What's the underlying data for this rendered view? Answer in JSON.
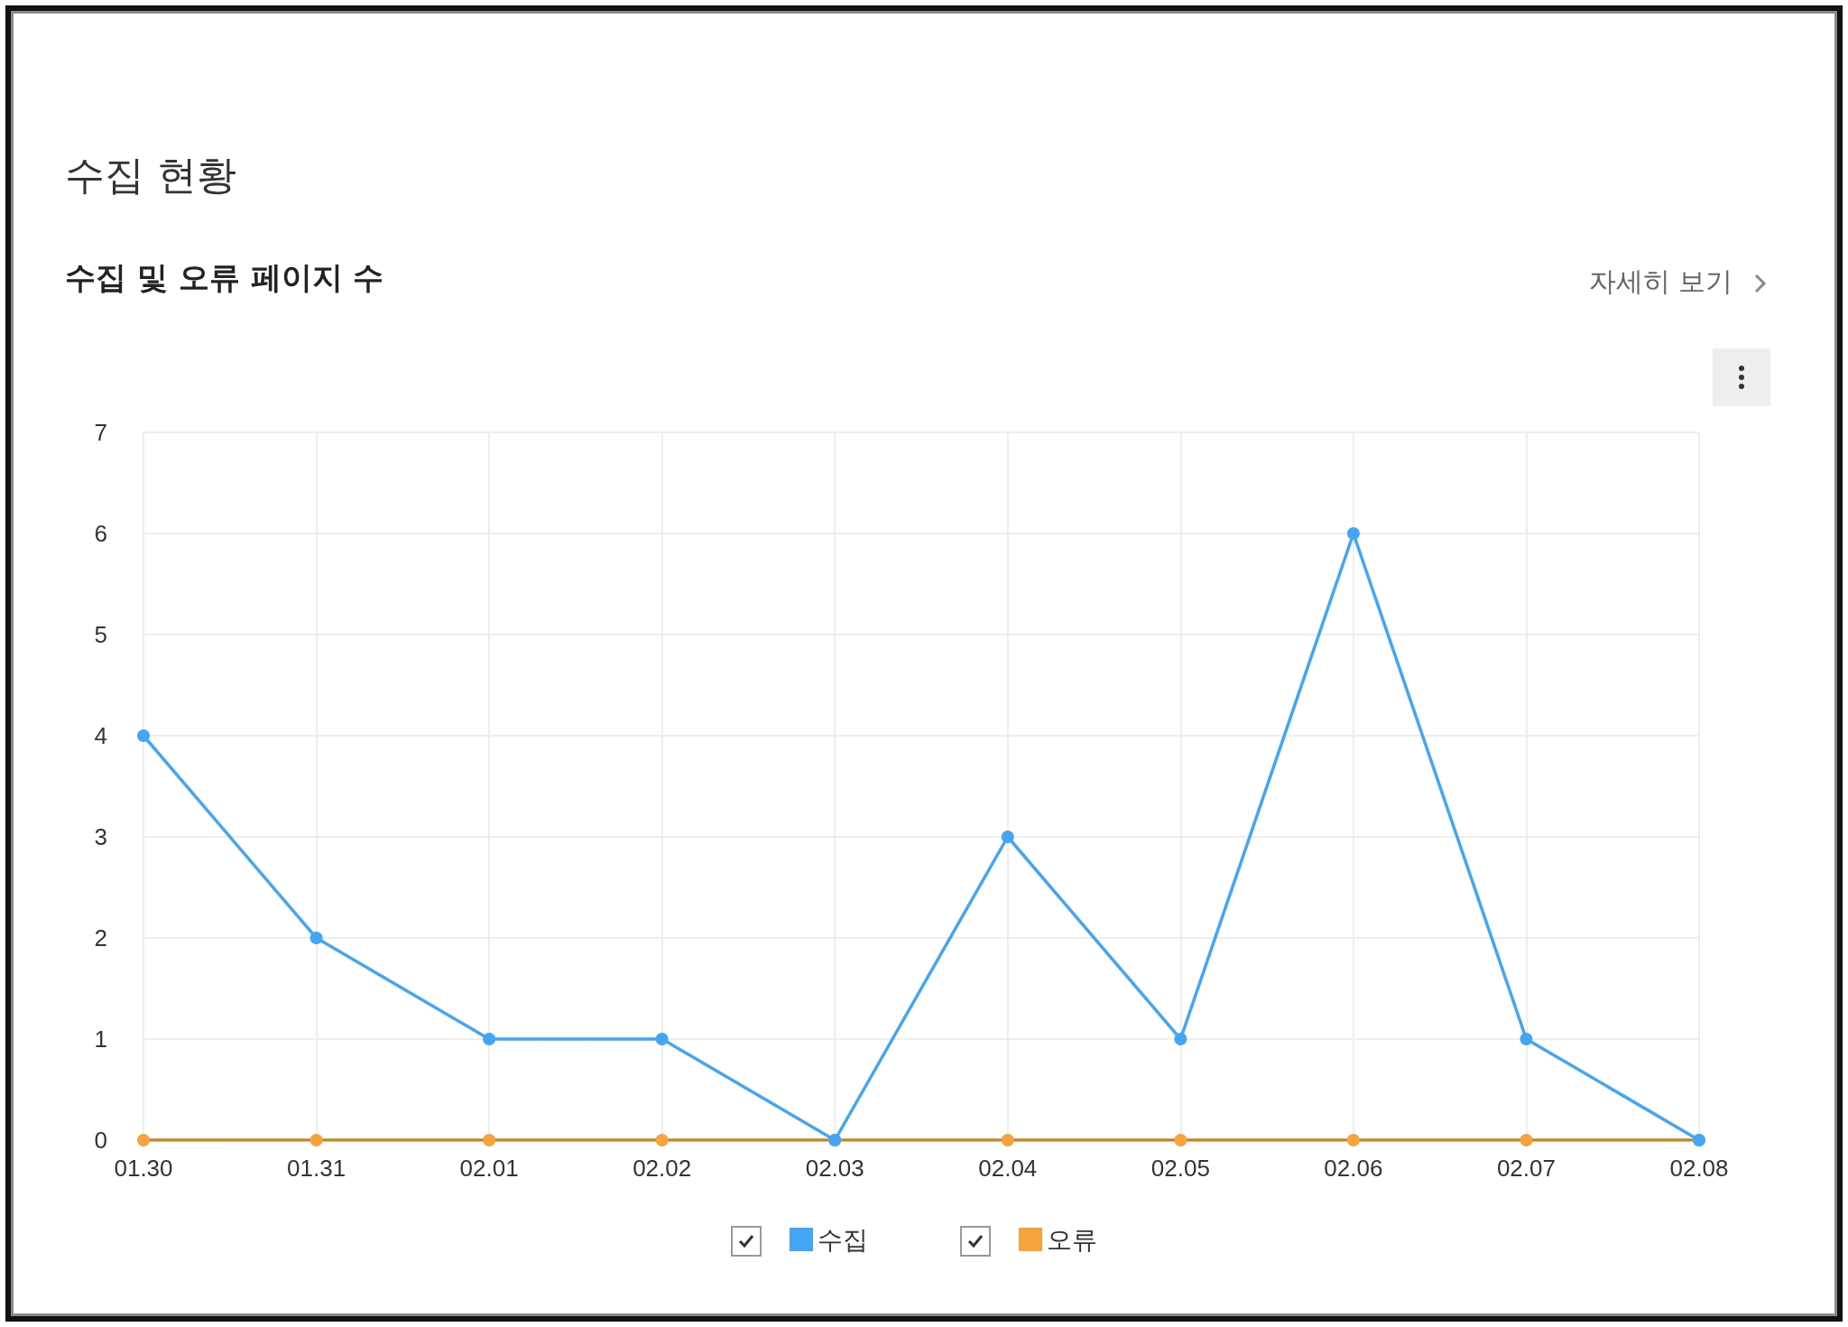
{
  "chart_data": {
    "type": "line",
    "title": "수집 현황",
    "subtitle": "수집 및 오류 페이지 수",
    "annotations": [
      "자세히 보기"
    ],
    "categories": [
      "01.30",
      "01.31",
      "02.01",
      "02.02",
      "02.03",
      "02.04",
      "02.05",
      "02.06",
      "02.07",
      "02.08"
    ],
    "series": [
      {
        "name": "수집",
        "color": "#42a5f5",
        "values": [
          4,
          2,
          1,
          1,
          0,
          3,
          1,
          6,
          1,
          0
        ]
      },
      {
        "name": "오류",
        "color": "#f5a33a",
        "values": [
          0,
          0,
          0,
          0,
          0,
          0,
          0,
          0,
          0,
          0
        ]
      }
    ],
    "ylim": [
      0,
      7
    ],
    "yticks": [
      0,
      1,
      2,
      3,
      4,
      5,
      6,
      7
    ],
    "grid": true,
    "legend": "bottom",
    "marker": "circle",
    "line_style": "solid"
  }
}
